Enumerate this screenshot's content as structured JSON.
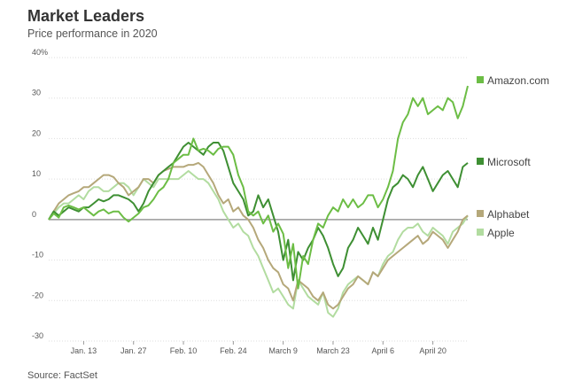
{
  "header": {
    "title": "Market Leaders",
    "subtitle": "Price performance in 2020"
  },
  "footer": {
    "source": "Source: FactSet"
  },
  "chart_data": {
    "type": "line",
    "title": "Market Leaders",
    "subtitle": "Price performance in 2020",
    "xlabel": "",
    "ylabel": "",
    "x_tick_labels": [
      "Jan. 13",
      "Jan. 27",
      "Feb. 10",
      "Feb. 24",
      "March 9",
      "March 23",
      "April 6",
      "April 20"
    ],
    "x_tick_index": [
      7,
      17,
      27,
      37,
      47,
      57,
      67,
      77
    ],
    "y_ticks": [
      40,
      30,
      20,
      10,
      0,
      -10,
      -20,
      -30
    ],
    "y_tick_labels": [
      "40%",
      "30",
      "20",
      "10",
      "0",
      "-10",
      "-20",
      "-30"
    ],
    "ylim": [
      -30,
      40
    ],
    "zero_line": true,
    "legend_position": "right",
    "series": [
      {
        "name": "Amazon.com",
        "color": "#6cbd45",
        "values": [
          0,
          1.5,
          0.5,
          3,
          3.5,
          3,
          2.5,
          3,
          2,
          1,
          2,
          2.5,
          1.5,
          2,
          2,
          0.5,
          -0.5,
          0.5,
          1.5,
          3,
          3.5,
          5,
          7,
          8,
          10,
          14,
          15,
          16,
          16,
          20,
          17,
          17.5,
          17,
          16,
          17.5,
          18,
          18,
          16,
          11,
          8,
          2,
          1,
          2,
          -1,
          1,
          -3,
          -1,
          -3.5,
          -12,
          -6,
          -17,
          -9,
          -11,
          -5,
          -1,
          -2,
          1,
          3,
          2,
          5,
          3,
          5,
          3,
          4,
          6,
          6,
          3,
          5,
          8,
          12,
          20,
          24,
          26,
          30,
          28,
          30,
          26,
          27,
          28,
          27,
          30,
          29,
          25,
          28,
          33
        ]
      },
      {
        "name": "Microsoft",
        "color": "#3e8f33",
        "values": [
          0,
          2,
          1,
          2,
          3,
          2.5,
          2,
          3,
          3,
          4,
          5,
          4.5,
          5,
          6,
          6,
          5.5,
          5,
          4,
          2,
          4,
          7,
          9,
          11,
          12,
          13,
          14,
          16,
          18,
          19,
          18,
          17,
          16,
          18,
          19,
          19,
          17,
          13,
          9,
          7,
          5,
          1,
          2,
          6,
          3,
          5,
          1,
          -3,
          -10,
          -5,
          -15,
          -8,
          -10,
          -7,
          -5,
          -2,
          -4,
          -7,
          -11,
          -14,
          -12,
          -7,
          -5,
          -2,
          -4,
          -6,
          -2,
          -5,
          0,
          5,
          8,
          9,
          11,
          10,
          8,
          11,
          13,
          10,
          7,
          9,
          11,
          12,
          10,
          8,
          13,
          14
        ]
      },
      {
        "name": "Alphabet",
        "color": "#b5a87a",
        "values": [
          0,
          2,
          4,
          5,
          6,
          6.5,
          7,
          8,
          8,
          9,
          10,
          11,
          11,
          10.5,
          9,
          8,
          6,
          7,
          8,
          10,
          10,
          9,
          11,
          12,
          12.5,
          13,
          13,
          13,
          13.5,
          13.5,
          14,
          13,
          11,
          9,
          6,
          4,
          5,
          2,
          3,
          1,
          0,
          -2,
          -5,
          -7,
          -10,
          -12,
          -13,
          -16,
          -17,
          -20,
          -15,
          -16,
          -17,
          -19,
          -20,
          -18,
          -21,
          -22,
          -21,
          -19,
          -17,
          -16,
          -14,
          -15,
          -16,
          -13,
          -14,
          -12,
          -10,
          -9,
          -8,
          -7,
          -6,
          -5,
          -4,
          -6,
          -5,
          -3,
          -4,
          -5,
          -7,
          -5,
          -3,
          0,
          1
        ]
      },
      {
        "name": "Apple",
        "color": "#b2dca0",
        "values": [
          0,
          1.5,
          3,
          4,
          4,
          5,
          6,
          5,
          7,
          8,
          8,
          7,
          7,
          8,
          9,
          9,
          8,
          6,
          8,
          10,
          9,
          8,
          10,
          10,
          10,
          10,
          10,
          11,
          12,
          11,
          10,
          10,
          9,
          7,
          5,
          2,
          0,
          -2,
          -1,
          -3,
          -4,
          -7,
          -9,
          -12,
          -15,
          -18,
          -17,
          -19,
          -21,
          -22,
          -15,
          -17,
          -19,
          -20,
          -21,
          -18,
          -23,
          -24,
          -22,
          -18,
          -16,
          -15,
          -14,
          -15,
          -16,
          -13,
          -14,
          -11,
          -9,
          -8,
          -5,
          -3,
          -2,
          -2,
          -1,
          -3,
          -4,
          -2,
          -3,
          -4,
          -6,
          -3,
          -2,
          -1,
          1
        ]
      }
    ]
  }
}
